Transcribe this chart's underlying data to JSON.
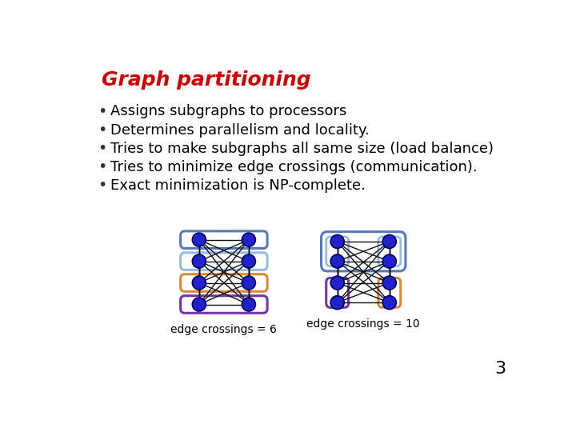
{
  "title": "Graph partitioning",
  "title_color": "#CC0000",
  "title_fontsize": 18,
  "title_fontstyle": "italic",
  "title_fontweight": "bold",
  "background_color": "#FFFFFF",
  "bullet_points": [
    "Assigns subgraphs to processors",
    "Determines parallelism and locality.",
    "Tries to make subgraphs all same size (load balance)",
    "Tries to minimize edge crossings (communication).",
    "Exact minimization is NP-complete."
  ],
  "bullet_fontsize": 13,
  "bullet_color": "#000000",
  "node_color": "#2222CC",
  "node_edge_color": "#000060",
  "edge_color": "#111111",
  "graph1_label": "edge crossings = 6",
  "graph2_label": "edge crossings = 10",
  "page_number": "3",
  "box_colors_left": [
    "#5577BB",
    "#99BBDD",
    "#DD8833",
    "#7733AA"
  ],
  "box_right_topleft": "#99BBDD",
  "box_right_topright": "#99BBDD",
  "box_right_outer_top": "#5577BB",
  "box_right_bottomleft": "#7733AA",
  "box_right_bottomright": "#DD8833"
}
